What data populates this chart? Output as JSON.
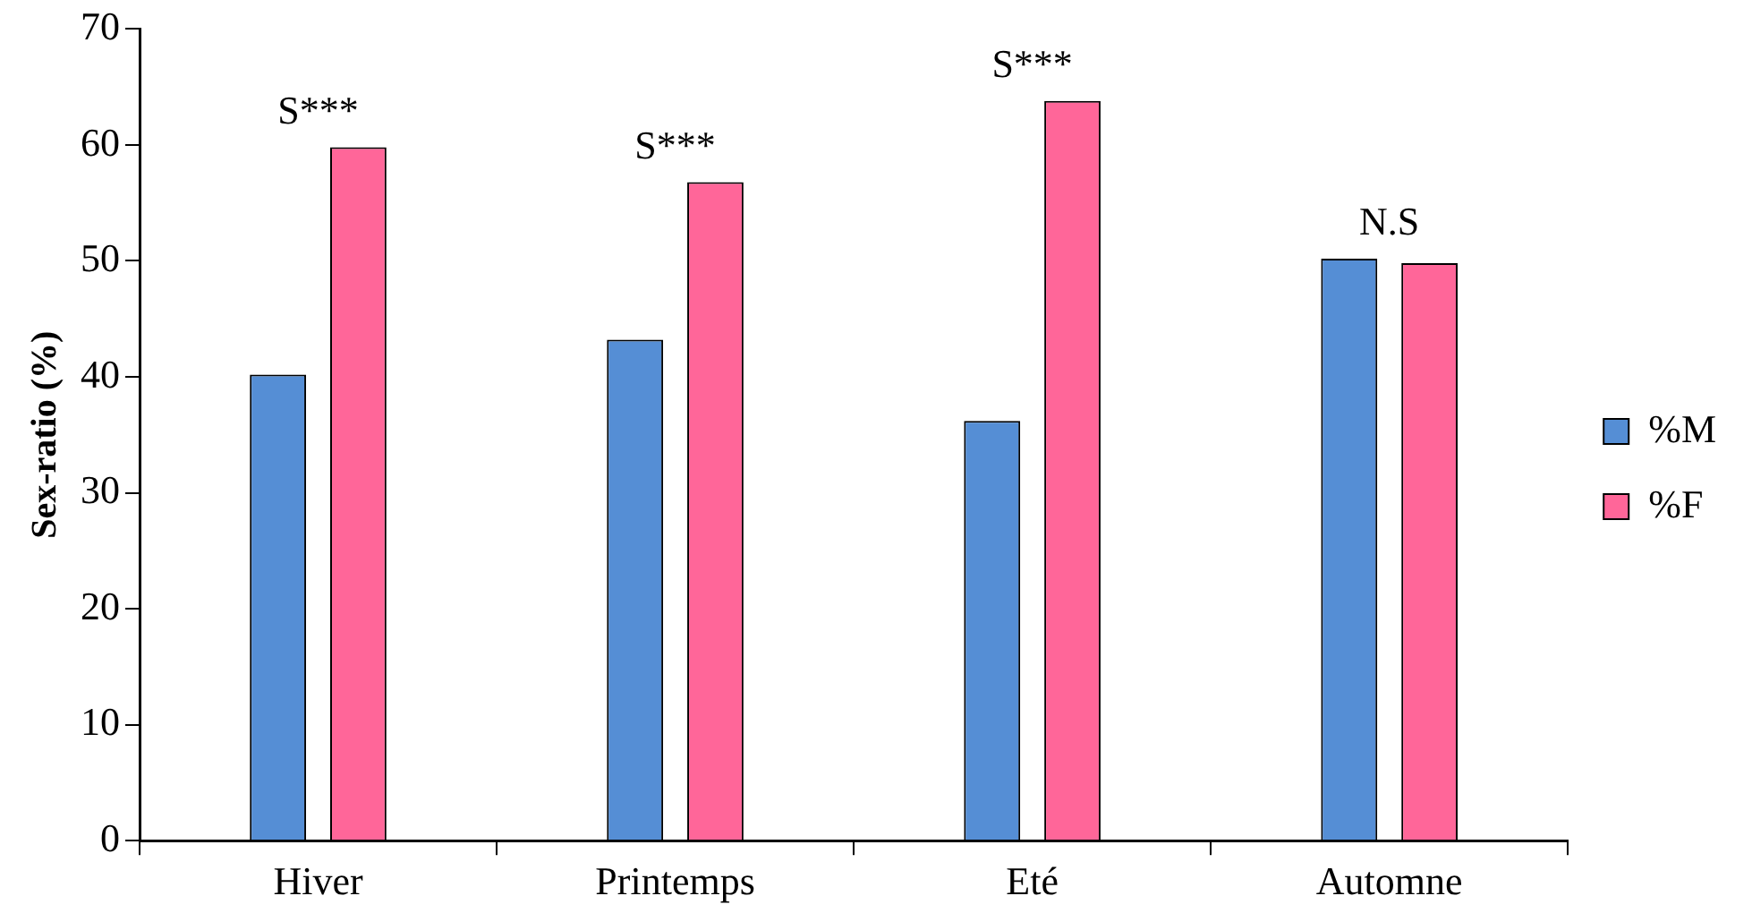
{
  "chart_data": {
    "type": "bar",
    "ylabel": "Sex-ratio (%)",
    "categories": [
      "Hiver",
      "Printemps",
      "Eté",
      "Automne"
    ],
    "series": [
      {
        "name": "%M",
        "color": "#558ed5",
        "values": [
          40.2,
          43.2,
          36.2,
          50.2
        ]
      },
      {
        "name": "%F",
        "color": "#ff6699",
        "values": [
          59.8,
          56.8,
          63.8,
          49.8
        ]
      }
    ],
    "ylim": [
      0,
      70
    ],
    "yticks": [
      0,
      10,
      20,
      30,
      40,
      50,
      60,
      70
    ],
    "grid": false,
    "legend": "right",
    "annotations": [
      "S***",
      "S***",
      "S***",
      "N.S"
    ]
  }
}
